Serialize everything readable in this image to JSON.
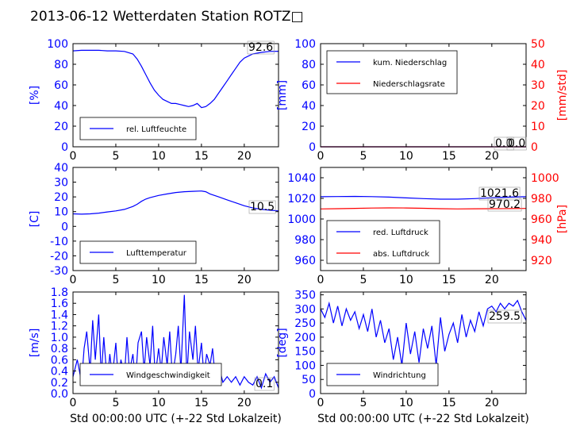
{
  "title": "2013-06-12 Wetterdaten Station ROTZ□",
  "colors": {
    "primary": "#0000ff",
    "secondary": "#ff0000",
    "axis": "#000000"
  },
  "chart_data": [
    {
      "type": "line",
      "panel": "top-left",
      "ylabel": "[%]",
      "xlim": [
        0,
        24
      ],
      "ylim": [
        0,
        100
      ],
      "xticks": [
        0,
        5,
        10,
        15,
        20
      ],
      "yticks": [
        0,
        20,
        40,
        60,
        80,
        100
      ],
      "legend": "lower-left",
      "last_value": "92.6",
      "series": [
        {
          "name": "rel. Luftfeuchte",
          "color": "#0000ff",
          "x": [
            0,
            1,
            2,
            3,
            4,
            5,
            6,
            7,
            7.5,
            8,
            8.5,
            9,
            9.5,
            10,
            10.5,
            11,
            11.5,
            12,
            12.5,
            13,
            13.5,
            14,
            14.5,
            15,
            15.5,
            16,
            16.5,
            17,
            17.5,
            18,
            18.5,
            19,
            19.5,
            20,
            20.5,
            21,
            22,
            23,
            24
          ],
          "y": [
            93,
            93.5,
            93.5,
            93.5,
            93,
            93,
            92.5,
            90,
            85,
            78,
            70,
            62,
            55,
            50,
            46,
            44,
            42,
            42,
            41,
            40,
            39,
            40,
            42,
            38,
            39,
            42,
            46,
            52,
            58,
            64,
            70,
            76,
            82,
            86,
            88,
            90,
            91.5,
            92.5,
            92.6
          ]
        }
      ]
    },
    {
      "type": "line",
      "panel": "top-right",
      "ylabel": "[mm]",
      "ylabel_right": "[mm/std]",
      "xlim": [
        0,
        24
      ],
      "ylim": [
        0,
        100
      ],
      "ylim_right": [
        0,
        50
      ],
      "xticks": [
        0,
        5,
        10,
        15,
        20
      ],
      "yticks": [
        0,
        20,
        40,
        60,
        80,
        100
      ],
      "yticks_right": [
        0,
        10,
        20,
        30,
        40,
        50
      ],
      "legend": "upper-left",
      "last_value": "0.0",
      "last_value_2": "0.0",
      "series": [
        {
          "name": "kum. Niederschlag",
          "color": "#0000ff",
          "x": [
            0,
            24
          ],
          "y": [
            0,
            0
          ]
        },
        {
          "name": "Niederschlagsrate",
          "color": "#ff0000",
          "x": [
            0,
            24
          ],
          "y": [
            0,
            0
          ]
        }
      ]
    },
    {
      "type": "line",
      "panel": "middle-left",
      "ylabel": "[C]",
      "xlim": [
        0,
        24
      ],
      "ylim": [
        -30,
        40
      ],
      "xticks": [
        0,
        5,
        10,
        15,
        20
      ],
      "yticks": [
        -30,
        -20,
        -10,
        0,
        10,
        20,
        30,
        40
      ],
      "legend": "lower-left",
      "last_value": "10.5",
      "series": [
        {
          "name": "Lufttemperatur",
          "color": "#0000ff",
          "x": [
            0,
            1,
            2,
            3,
            4,
            5,
            6,
            7,
            7.5,
            8,
            8.5,
            9,
            10,
            11,
            12,
            13,
            14,
            15,
            15.5,
            16,
            17,
            18,
            19,
            20,
            21,
            22,
            23,
            24
          ],
          "y": [
            8.5,
            8.3,
            8.5,
            9,
            9.8,
            10.5,
            11.5,
            13.5,
            15,
            17,
            18.5,
            19.5,
            21,
            22,
            23,
            23.5,
            23.8,
            24,
            23.5,
            22,
            20,
            18,
            16,
            14,
            12.5,
            11.5,
            11,
            10.5
          ]
        }
      ]
    },
    {
      "type": "line",
      "panel": "middle-right",
      "ylabel_right": "[hPa]",
      "xlim": [
        0,
        24
      ],
      "ylim": [
        950,
        1050
      ],
      "ylim_right": [
        910,
        1010
      ],
      "xticks": [
        0,
        5,
        10,
        15,
        20
      ],
      "yticks": [
        960,
        980,
        1000,
        1020,
        1040
      ],
      "yticks_right": [
        920,
        940,
        960,
        980,
        1000
      ],
      "legend": "lower-left",
      "last_value": "1021.6",
      "last_value_2": "970.2",
      "series": [
        {
          "name": "red. Luftdruck",
          "color": "#0000ff",
          "x": [
            0,
            2,
            4,
            6,
            8,
            10,
            12,
            14,
            16,
            18,
            20,
            22,
            24
          ],
          "y": [
            1021.6,
            1021.8,
            1021.9,
            1021.7,
            1021.2,
            1020.5,
            1019.8,
            1019.2,
            1019.2,
            1019.8,
            1020.6,
            1021.2,
            1021.6
          ]
        },
        {
          "name": "abs. Luftdruck",
          "color": "#ff0000",
          "x": [
            0,
            2,
            4,
            6,
            8,
            10,
            12,
            14,
            16,
            18,
            20,
            22,
            24
          ],
          "y": [
            969.8,
            970.0,
            970.3,
            970.6,
            970.8,
            970.7,
            970.4,
            970.0,
            969.8,
            969.9,
            970.0,
            970.1,
            970.2
          ]
        }
      ]
    },
    {
      "type": "line",
      "panel": "bottom-left",
      "ylabel": "[m/s]",
      "xlabel": "Std 00:00:00 UTC (+-22 Std Lokalzeit)",
      "xlim": [
        0,
        24
      ],
      "ylim": [
        0,
        1.8
      ],
      "xticks": [
        0,
        5,
        10,
        15,
        20
      ],
      "yticks": [
        0.0,
        0.2,
        0.4,
        0.6,
        0.8,
        1.0,
        1.2,
        1.4,
        1.6,
        1.8
      ],
      "legend": "lower-center",
      "last_value": "0.1",
      "series": [
        {
          "name": "Windgeschwindigkeit",
          "color": "#0000ff",
          "x": [
            0,
            0.5,
            1,
            1.3,
            1.6,
            2,
            2.3,
            2.6,
            3,
            3.3,
            3.6,
            4,
            4.3,
            4.6,
            5,
            5.3,
            5.6,
            6,
            6.3,
            6.6,
            7,
            7.3,
            7.6,
            8,
            8.3,
            8.6,
            9,
            9.3,
            9.6,
            10,
            10.3,
            10.6,
            11,
            11.3,
            11.6,
            12,
            12.3,
            12.6,
            13,
            13.3,
            13.6,
            14,
            14.3,
            14.6,
            15,
            15.3,
            15.6,
            16,
            16.3,
            16.6,
            17,
            17.5,
            18,
            18.5,
            19,
            19.5,
            20,
            20.5,
            21,
            21.5,
            22,
            22.5,
            23,
            23.5,
            24
          ],
          "y": [
            0.3,
            0.6,
            0.2,
            0.8,
            1.1,
            0.4,
            1.3,
            0.6,
            1.4,
            0.3,
            1.0,
            0.2,
            0.7,
            0.3,
            0.9,
            0.2,
            0.6,
            0.3,
            1.0,
            0.4,
            0.7,
            0.2,
            0.9,
            1.1,
            0.4,
            1.0,
            0.5,
            1.2,
            0.3,
            0.8,
            0.4,
            1.0,
            0.5,
            1.1,
            0.3,
            0.7,
            1.2,
            0.4,
            1.75,
            0.3,
            1.1,
            0.6,
            1.2,
            0.4,
            0.9,
            0.3,
            0.7,
            0.5,
            0.8,
            0.3,
            0.5,
            0.2,
            0.3,
            0.2,
            0.3,
            0.15,
            0.3,
            0.2,
            0.15,
            0.3,
            0.1,
            0.35,
            0.2,
            0.3,
            0.1
          ]
        }
      ]
    },
    {
      "type": "line",
      "panel": "bottom-right",
      "ylabel": "[deg]",
      "xlabel": "Std 00:00:00 UTC (+-22 Std Lokalzeit)",
      "xlim": [
        0,
        24
      ],
      "ylim": [
        0,
        360
      ],
      "xticks": [
        0,
        5,
        10,
        15,
        20
      ],
      "yticks": [
        0,
        50,
        100,
        150,
        200,
        250,
        300,
        350
      ],
      "legend": "lower-left",
      "last_value": "259.5",
      "series": [
        {
          "name": "Windrichtung",
          "color": "#0000ff",
          "x": [
            0,
            0.5,
            1,
            1.5,
            2,
            2.5,
            3,
            3.5,
            4,
            4.5,
            5,
            5.5,
            6,
            6.5,
            7,
            7.5,
            8,
            8.5,
            9,
            9.5,
            10,
            10.5,
            11,
            11.5,
            12,
            12.5,
            13,
            13.5,
            14,
            14.5,
            15,
            15.5,
            16,
            16.5,
            17,
            17.5,
            18,
            18.5,
            19,
            19.5,
            20,
            20.5,
            21,
            21.5,
            22,
            22.5,
            23,
            23.5,
            24
          ],
          "y": [
            300,
            270,
            320,
            250,
            310,
            240,
            300,
            260,
            290,
            230,
            280,
            220,
            300,
            200,
            260,
            180,
            230,
            120,
            200,
            100,
            250,
            140,
            220,
            110,
            230,
            160,
            240,
            100,
            270,
            150,
            210,
            250,
            180,
            280,
            200,
            260,
            220,
            290,
            240,
            300,
            310,
            290,
            320,
            300,
            320,
            310,
            330,
            290,
            259.5
          ]
        }
      ]
    }
  ]
}
